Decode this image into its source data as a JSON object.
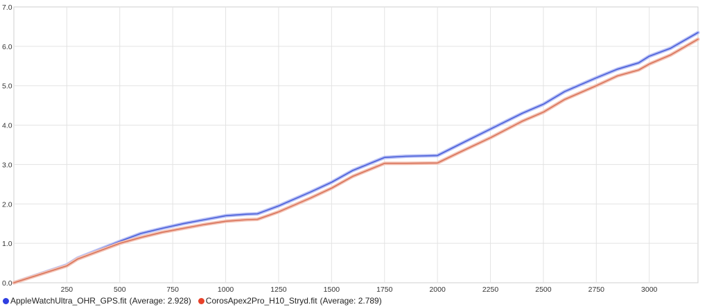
{
  "chart_data": {
    "type": "line",
    "xlim": [
      0,
      3230
    ],
    "ylim": [
      0,
      7
    ],
    "x_ticks": [
      250,
      500,
      750,
      1000,
      1250,
      1500,
      1750,
      2000,
      2250,
      2500,
      2750,
      3000
    ],
    "y_ticks": [
      "0.0",
      "1.0",
      "2.0",
      "3.0",
      "4.0",
      "5.0",
      "6.0",
      "7.0"
    ],
    "grid": true,
    "legend_position": "bottom-left",
    "series": [
      {
        "name": "AppleWatchUltra_OHR_GPS.fit",
        "average_label": "(Average: 2.928)",
        "color": "#4a5fd9",
        "halo": "#b8c0f5",
        "points": [
          [
            0,
            0
          ],
          [
            250,
            0.45
          ],
          [
            300,
            0.62
          ],
          [
            500,
            1.05
          ],
          [
            600,
            1.25
          ],
          [
            700,
            1.38
          ],
          [
            800,
            1.5
          ],
          [
            900,
            1.6
          ],
          [
            1000,
            1.7
          ],
          [
            1100,
            1.74
          ],
          [
            1150,
            1.75
          ],
          [
            1250,
            1.95
          ],
          [
            1400,
            2.3
          ],
          [
            1500,
            2.55
          ],
          [
            1600,
            2.85
          ],
          [
            1750,
            3.18
          ],
          [
            1850,
            3.21
          ],
          [
            2000,
            3.23
          ],
          [
            2100,
            3.5
          ],
          [
            2250,
            3.9
          ],
          [
            2400,
            4.3
          ],
          [
            2500,
            4.53
          ],
          [
            2600,
            4.85
          ],
          [
            2750,
            5.2
          ],
          [
            2850,
            5.42
          ],
          [
            2950,
            5.58
          ],
          [
            3000,
            5.75
          ],
          [
            3100,
            5.95
          ],
          [
            3230,
            6.35
          ]
        ]
      },
      {
        "name": "CorosApex2Pro_H10_Stryd.fit",
        "average_label": "(Average: 2.789)",
        "color": "#d9735a",
        "halo": "#f3c3b5",
        "points": [
          [
            0,
            0
          ],
          [
            250,
            0.43
          ],
          [
            300,
            0.6
          ],
          [
            500,
            1.0
          ],
          [
            600,
            1.15
          ],
          [
            700,
            1.28
          ],
          [
            800,
            1.38
          ],
          [
            900,
            1.48
          ],
          [
            1000,
            1.56
          ],
          [
            1100,
            1.6
          ],
          [
            1150,
            1.61
          ],
          [
            1250,
            1.8
          ],
          [
            1400,
            2.15
          ],
          [
            1500,
            2.4
          ],
          [
            1600,
            2.7
          ],
          [
            1750,
            3.03
          ],
          [
            1850,
            3.03
          ],
          [
            2000,
            3.04
          ],
          [
            2100,
            3.3
          ],
          [
            2250,
            3.68
          ],
          [
            2400,
            4.1
          ],
          [
            2500,
            4.33
          ],
          [
            2600,
            4.65
          ],
          [
            2750,
            5.0
          ],
          [
            2850,
            5.25
          ],
          [
            2950,
            5.4
          ],
          [
            3000,
            5.55
          ],
          [
            3100,
            5.78
          ],
          [
            3230,
            6.18
          ]
        ]
      }
    ]
  }
}
